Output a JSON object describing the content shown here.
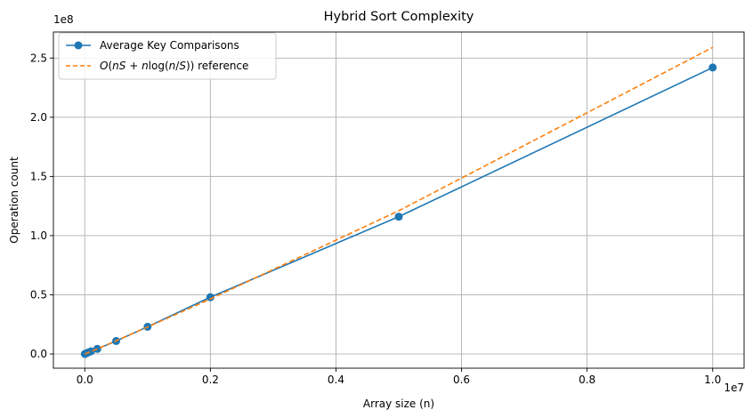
{
  "chart_data": {
    "type": "line",
    "title": "Hybrid Sort Complexity",
    "xlabel": "Array size (n)",
    "ylabel": "Operation count",
    "x_offset_label": "1e7",
    "y_offset_label": "1e8",
    "xlim": [
      -500000,
      10500000
    ],
    "ylim": [
      -12000000,
      272000000
    ],
    "x_ticks": [
      0,
      2000000,
      4000000,
      6000000,
      8000000,
      10000000
    ],
    "x_tick_labels": [
      "0.0",
      "0.2",
      "0.4",
      "0.6",
      "0.8",
      "1.0"
    ],
    "y_ticks": [
      0,
      50000000,
      100000000,
      150000000,
      200000000,
      250000000
    ],
    "y_tick_labels": [
      "0.0",
      "0.5",
      "1.0",
      "1.5",
      "2.0",
      "2.5"
    ],
    "grid": true,
    "legend_position": "top-left",
    "series": [
      {
        "name": "Average Key Comparisons",
        "style": "solid-markers",
        "color": "#1f77b4",
        "x": [
          1000,
          5000,
          10000,
          50000,
          100000,
          200000,
          500000,
          1000000,
          2000000,
          5000000,
          10000000
        ],
        "y": [
          24000,
          120000,
          240000,
          1200000,
          2300000,
          4300000,
          11000000,
          23000000,
          48000000,
          116000000,
          242000000
        ]
      },
      {
        "name": "$O(nS + n\\log(n/S))$ reference",
        "legend_parts": [
          "O",
          "(",
          "nS",
          " + ",
          "n",
          "log(",
          "n",
          "/",
          "S",
          ")) reference"
        ],
        "style": "dashed",
        "color": "#ff7f0e",
        "x": [
          1000,
          5000,
          10000,
          50000,
          100000,
          200000,
          500000,
          1000000,
          2000000,
          5000000,
          10000000
        ],
        "y": [
          20000,
          100000,
          210000,
          1050000,
          2150000,
          4350000,
          11200000,
          22800000,
          46500000,
          121000000,
          259000000
        ]
      }
    ]
  }
}
